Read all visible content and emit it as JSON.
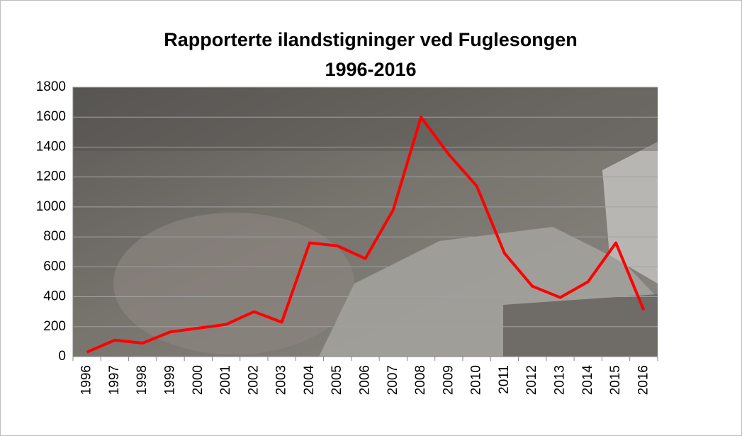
{
  "chart_data": {
    "type": "line",
    "title": "Rapporterte ilandstigninger ved Fuglesongen",
    "subtitle": "1996-2016",
    "categories": [
      "1996",
      "1997",
      "1998",
      "1999",
      "2000",
      "2001",
      "2002",
      "2003",
      "2004",
      "2005",
      "2006",
      "2007",
      "2008",
      "2009",
      "2010",
      "2011",
      "2012",
      "2013",
      "2014",
      "2015",
      "2016"
    ],
    "series": [
      {
        "name": null,
        "color": "#ff0000",
        "values": [
          30,
          110,
          90,
          165,
          190,
          215,
          300,
          230,
          760,
          740,
          655,
          980,
          1600,
          1350,
          1140,
          690,
          470,
          395,
          500,
          760,
          310
        ]
      }
    ],
    "ylim": [
      0,
      1800
    ],
    "yticks": [
      0,
      200,
      400,
      600,
      800,
      1000,
      1200,
      1400,
      1600,
      1800
    ],
    "grid": true
  }
}
